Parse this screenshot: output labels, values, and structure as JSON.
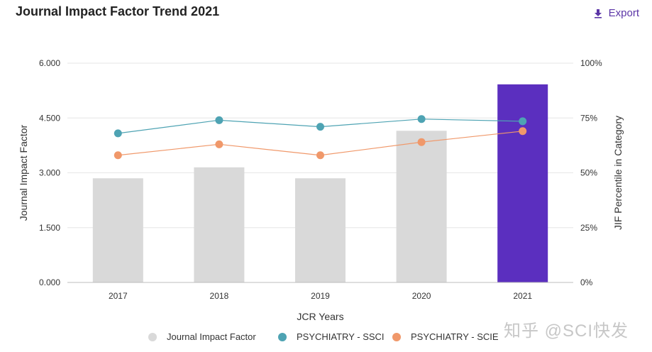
{
  "header": {
    "title": "Journal Impact Factor Trend 2021",
    "export_label": "Export"
  },
  "watermark": "知乎 @SCI快发",
  "chart_data": {
    "type": "bar",
    "categories": [
      "2017",
      "2018",
      "2019",
      "2020",
      "2021"
    ],
    "series": [
      {
        "name": "Journal Impact Factor",
        "axis": "left",
        "type": "bar",
        "values": [
          2.85,
          3.15,
          2.85,
          4.15,
          5.42
        ],
        "color": "#d9d9d9",
        "highlight_index": 4,
        "highlight_color": "#5b2fbf"
      },
      {
        "name": "PSYCHIATRY - SSCI",
        "axis": "right",
        "type": "line",
        "values": [
          68,
          74,
          71,
          74.5,
          73.5
        ],
        "color": "#4ea3b3"
      },
      {
        "name": "PSYCHIATRY - SCIE",
        "axis": "right",
        "type": "line",
        "values": [
          58,
          63,
          58,
          64,
          69
        ],
        "color": "#f0986a"
      }
    ],
    "xlabel": "JCR Years",
    "ylabel": "Journal Impact Factor",
    "y2label": "JIF Percentile in Category",
    "ylim": [
      0,
      6
    ],
    "y2lim": [
      0,
      100
    ],
    "yticks": [
      "0.000",
      "1.500",
      "3.000",
      "4.500",
      "6.000"
    ],
    "y2ticks": [
      "0%",
      "25%",
      "50%",
      "75%",
      "100%"
    ],
    "legend_position": "bottom"
  }
}
